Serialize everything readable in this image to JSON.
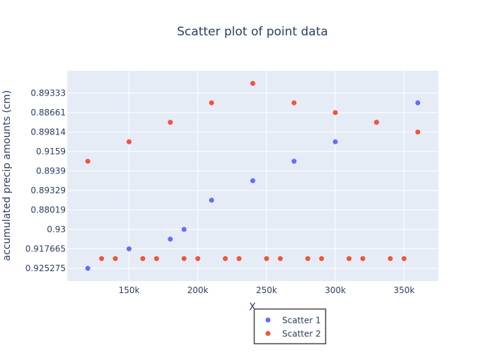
{
  "chart_data": {
    "type": "scatter",
    "title": "Scatter plot of point data",
    "xlabel": "X",
    "ylabel": "accumulated precip amounts (cm)",
    "xlim": [
      105000,
      375000
    ],
    "x_ticks": [
      {
        "value": 150000,
        "label": "150k"
      },
      {
        "value": 200000,
        "label": "200k"
      },
      {
        "value": 250000,
        "label": "250k"
      },
      {
        "value": 300000,
        "label": "300k"
      },
      {
        "value": 350000,
        "label": "350k"
      }
    ],
    "y_categories": [
      "0.925275",
      "0.917665",
      "0.93",
      "0.88019",
      "0.89329",
      "0.8939",
      "0.9159",
      "0.89814",
      "0.88661",
      "0.89333"
    ],
    "grid": true,
    "legend_position": "bottom",
    "series": [
      {
        "name": "Scatter 1",
        "color": "#636efa",
        "x": [
          120000,
          150000,
          180000,
          190000,
          210000,
          240000,
          270000,
          300000,
          330000,
          360000
        ],
        "y": [
          "0.925275",
          "0.917665",
          "0.93",
          "0.93",
          "0.88019",
          "0.89329",
          "0.8939",
          "0.9159",
          "0.89814",
          "0.88661"
        ],
        "y_offset": [
          0,
          0,
          -0.5,
          0,
          0.5,
          0.5,
          0.5,
          0.5,
          0.5,
          0.5
        ]
      },
      {
        "name": "Scatter 2",
        "color": "#ef553b",
        "x": [
          120000,
          130000,
          140000,
          150000,
          160000,
          170000,
          180000,
          190000,
          200000,
          210000,
          220000,
          230000,
          240000,
          250000,
          260000,
          270000,
          280000,
          290000,
          300000,
          310000,
          320000,
          330000,
          340000,
          350000,
          360000
        ],
        "y": [
          "0.8939",
          "0.917665",
          "0.917665",
          "0.9159",
          "0.917665",
          "0.917665",
          "0.89814",
          "0.917665",
          "0.917665",
          "0.88661",
          "0.917665",
          "0.917665",
          "0.89333",
          "0.917665",
          "0.917665",
          "0.89333",
          "0.917665",
          "0.917665",
          "0.89333",
          "0.917665",
          "0.917665",
          "0.89333",
          "0.917665",
          "0.917665",
          "0.89333"
        ],
        "y_offset": [
          0.5,
          -0.5,
          -0.5,
          0.5,
          -0.5,
          -0.5,
          0.5,
          -0.5,
          -0.5,
          0.5,
          -0.5,
          -0.5,
          0.5,
          -0.5,
          -0.5,
          -0.5,
          -0.5,
          -0.5,
          -1.0,
          -0.5,
          -0.5,
          -1.5,
          -0.5,
          -0.5,
          -2.0
        ]
      }
    ]
  }
}
